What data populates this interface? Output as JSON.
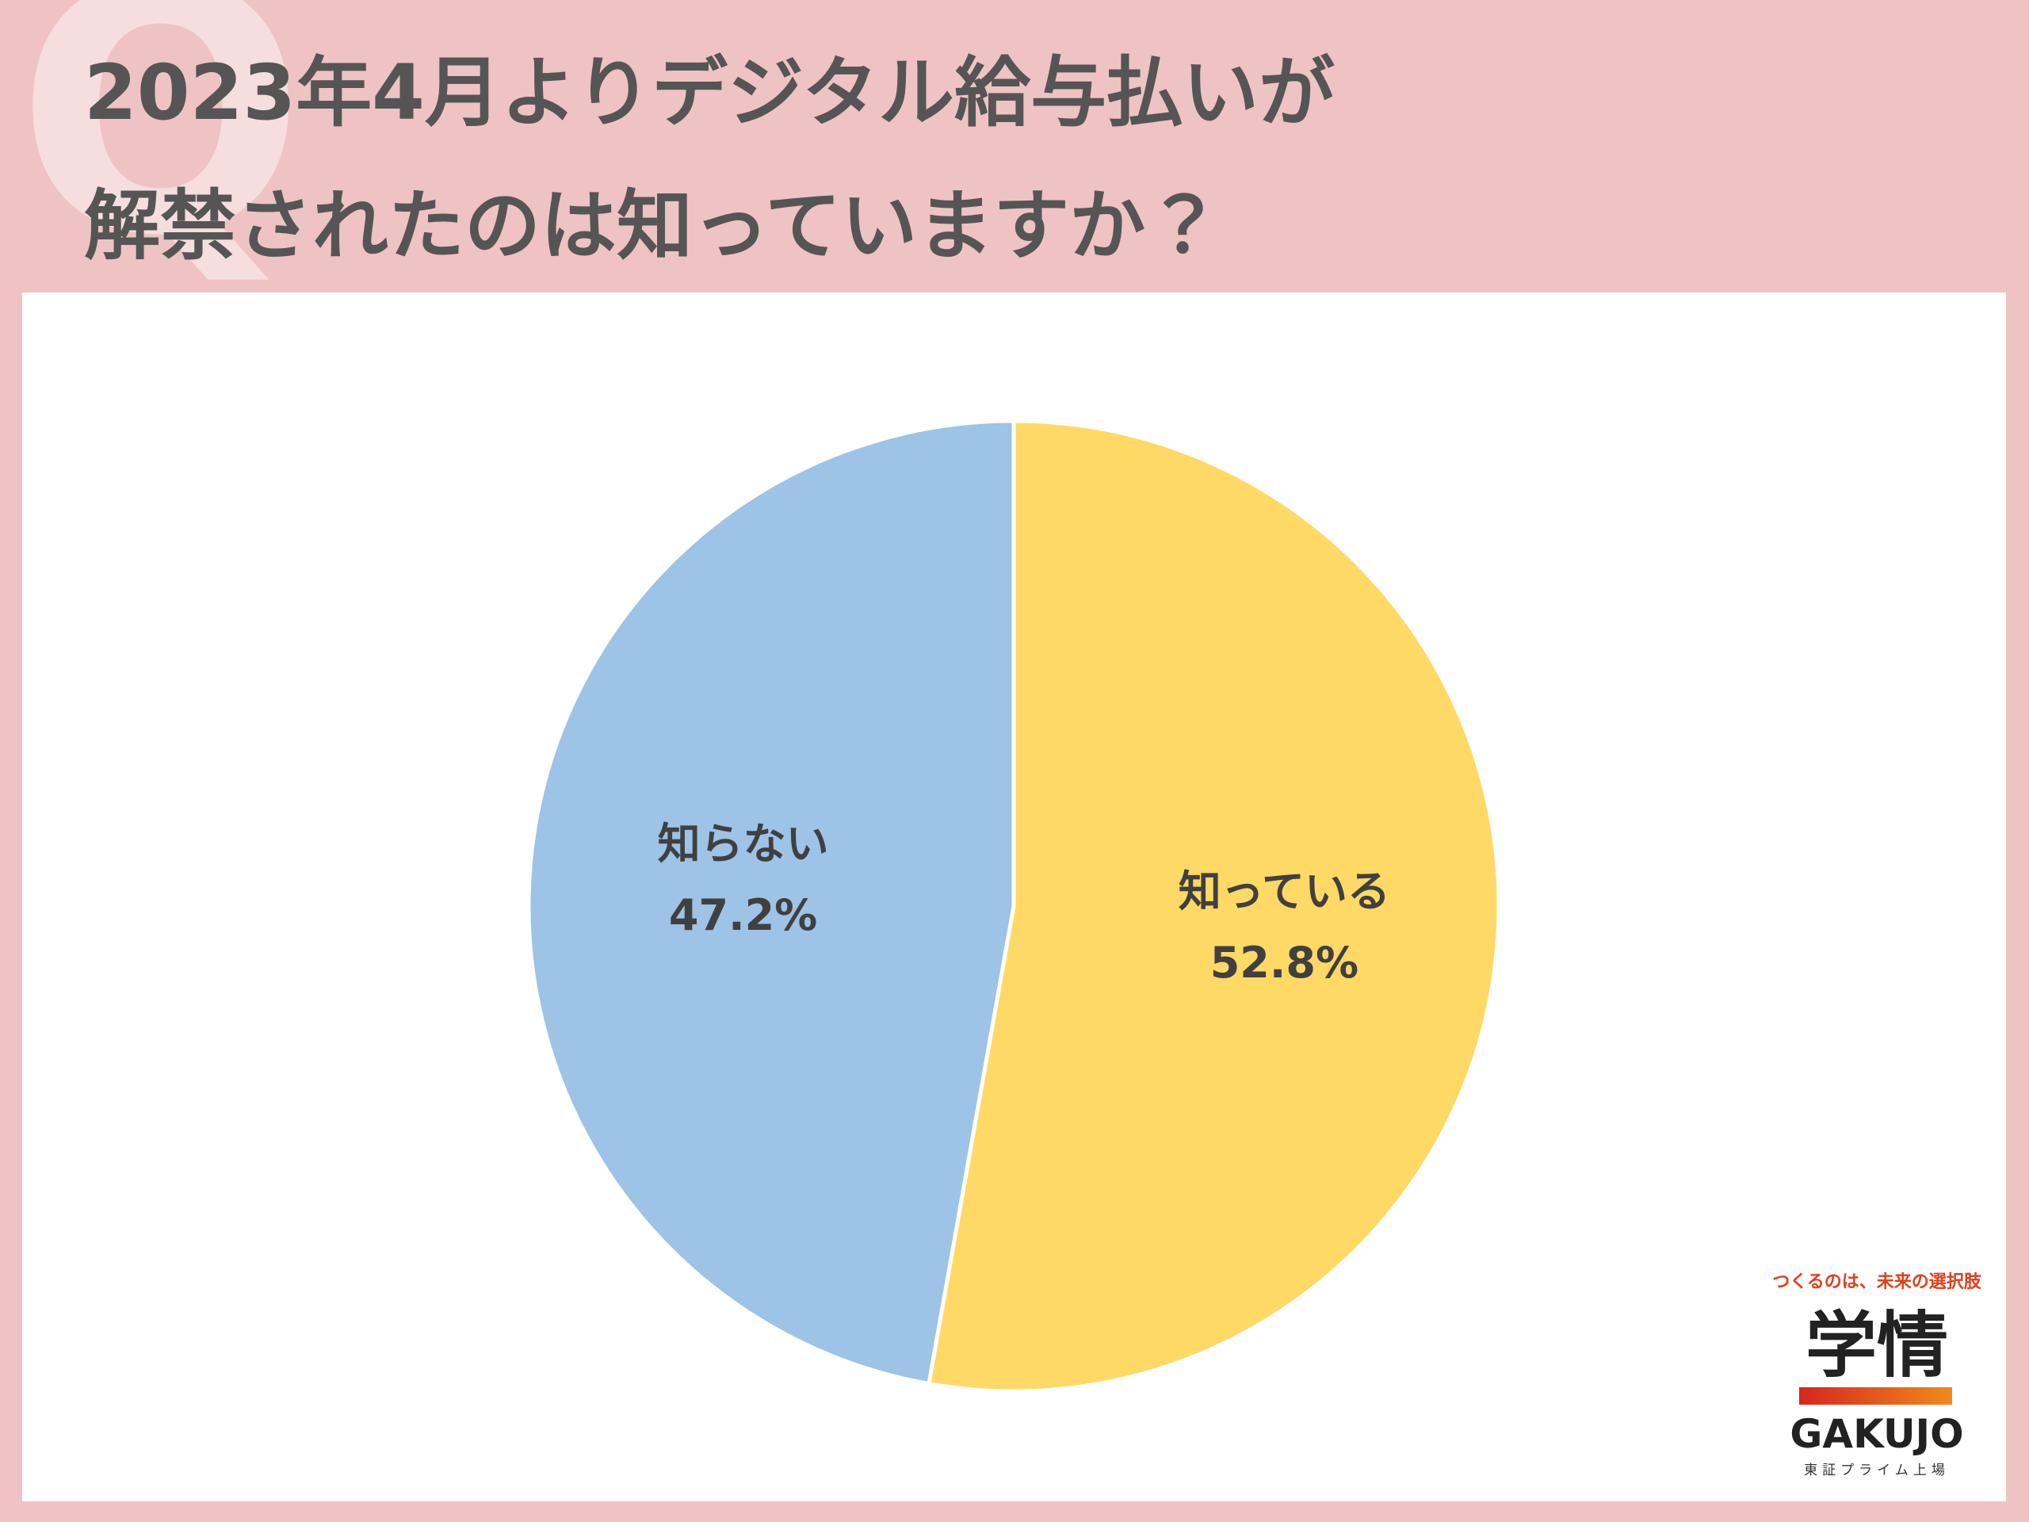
{
  "decor_letter": "Q",
  "chart_data": {
    "type": "pie",
    "title": [
      "2023年4月よりデジタル給与払いが",
      "解禁されたのは知っていますか？"
    ],
    "categories": [
      "知っている",
      "知らない"
    ],
    "values": [
      52.8,
      47.2
    ],
    "value_labels": [
      "52.8%",
      "47.2%"
    ],
    "colors": [
      "#ffd966",
      "#9dc3e6"
    ]
  },
  "logo": {
    "tagline": "つくるのは、未来の選択肢",
    "name": "学情",
    "name_en": "GAKUJO",
    "listing": "東証プライム上場"
  }
}
